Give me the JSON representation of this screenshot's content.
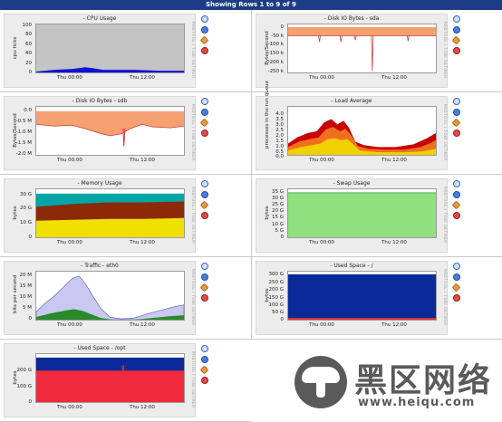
{
  "header": {
    "title": "Showing Rows 1 to 9 of 9"
  },
  "watermark": "RRDTOOL / TOBI OETIKER",
  "actions": {
    "zoom": "zoom-icon",
    "spike": "spike-kill-icon",
    "edit": "edit-icon",
    "delete": "delete-icon"
  },
  "graphs": [
    {
      "title": "- CPU Usage",
      "ylabel": "cpu ticks",
      "yticks": [
        "100",
        "80",
        "60",
        "40",
        "20",
        "0"
      ],
      "xticks": [
        "Thu 00:00",
        "Thu 12:00"
      ]
    },
    {
      "title": "- Disk IO Bytes - sda",
      "ylabel": "Bytes/Second",
      "yticks": [
        "0",
        "-50 k",
        "-100 k",
        "-150 k",
        "-200 k",
        "-250 k"
      ],
      "xticks": [
        "Thu 00:00",
        "Thu 12:00"
      ]
    },
    {
      "title": "- Disk IO Bytes - sdb",
      "ylabel": "Bytes/Second",
      "yticks": [
        "0.0",
        "-0.5 M",
        "-1.0 M",
        "-1.5 M",
        "-2.0 M"
      ],
      "xticks": [
        "Thu 00:00",
        "Thu 12:00"
      ]
    },
    {
      "title": "- Load Average",
      "ylabel": "processes in the run queue",
      "yticks": [
        "4.0",
        "3.5",
        "3.0",
        "2.5",
        "2.0",
        "1.5",
        "1.0",
        "0.5",
        "0.0"
      ],
      "xticks": [
        "Thu 00:00",
        "Thu 12:00"
      ]
    },
    {
      "title": "- Memory Usage",
      "ylabel": "bytes",
      "yticks": [
        "30 G",
        "20 G",
        "10 G",
        "0"
      ],
      "xticks": [
        "Thu 00:00",
        "Thu 12:00"
      ]
    },
    {
      "title": "- Swap Usage",
      "ylabel": "bytes",
      "yticks": [
        "35 G",
        "30 G",
        "25 G",
        "20 G",
        "15 G",
        "10 G",
        "5 G",
        "0"
      ],
      "xticks": [
        "Thu 00:00",
        "Thu 12:00"
      ]
    },
    {
      "title": "- Traffic - eth0",
      "ylabel": "bits per second",
      "yticks": [
        "20 M",
        "15 M",
        "10 M",
        "5 M",
        "0"
      ],
      "xticks": [
        "Thu 00:00",
        "Thu 12:00"
      ]
    },
    {
      "title": "- Used Space - /",
      "ylabel": "bytes",
      "yticks": [
        "300 G",
        "250 G",
        "200 G",
        "150 G",
        "100 G",
        "50 G",
        "0"
      ],
      "xticks": [
        "Thu 00:00",
        "Thu 12:00"
      ]
    },
    {
      "title": "- Used Space - /opt",
      "ylabel": "bytes",
      "yticks": [
        "200 G",
        "100 G",
        "0"
      ],
      "xticks": [
        "Thu 00:00",
        "Thu 12:00"
      ]
    }
  ],
  "logo": {
    "cn": "黑区网络",
    "url": "www.heiqu.com"
  }
}
